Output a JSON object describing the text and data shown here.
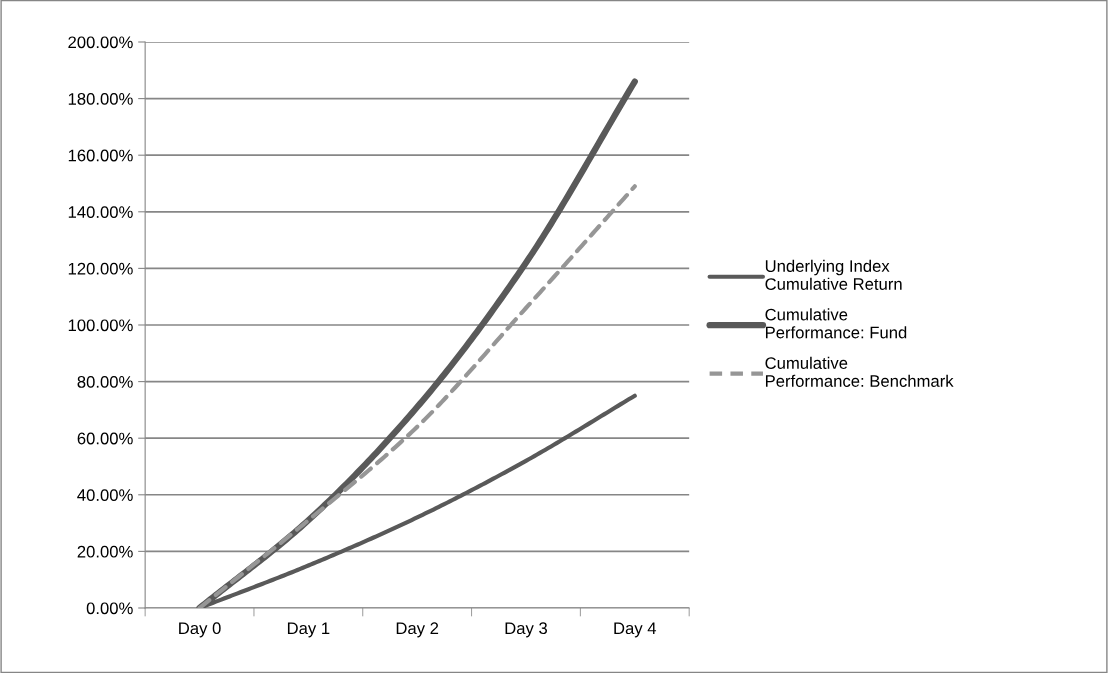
{
  "chart_data": {
    "type": "line",
    "categories": [
      "Day 0",
      "Day 1",
      "Day 2",
      "Day 3",
      "Day 4"
    ],
    "series": [
      {
        "name": "Underlying Index Cumulative Return",
        "color": "#595959",
        "values": [
          0,
          15,
          32,
          52,
          75
        ]
      },
      {
        "name": "Cumulative Performance: Fund",
        "color": "#595959",
        "values": [
          0,
          31,
          71,
          122,
          186
        ]
      },
      {
        "name": "Cumulative Performance: Benchmark",
        "color": "#969696",
        "line_style": "dashed",
        "values": [
          0,
          31,
          64,
          106,
          149
        ]
      }
    ],
    "ylim": [
      0,
      200
    ],
    "yticks": [
      {
        "value": 0,
        "label": "0.00%"
      },
      {
        "value": 20,
        "label": "20.00%"
      },
      {
        "value": 40,
        "label": "40.00%"
      },
      {
        "value": 60,
        "label": "60.00%"
      },
      {
        "value": 80,
        "label": "80.00%"
      },
      {
        "value": 100,
        "label": "100.00%"
      },
      {
        "value": 120,
        "label": "120.00%"
      },
      {
        "value": 140,
        "label": "140.00%"
      },
      {
        "value": 160,
        "label": "160.00%"
      },
      {
        "value": 180,
        "label": "180.00%"
      },
      {
        "value": 200,
        "label": "200.00%"
      }
    ],
    "grid": "y",
    "legend": "right",
    "marker": "none",
    "line_style": "solid"
  }
}
